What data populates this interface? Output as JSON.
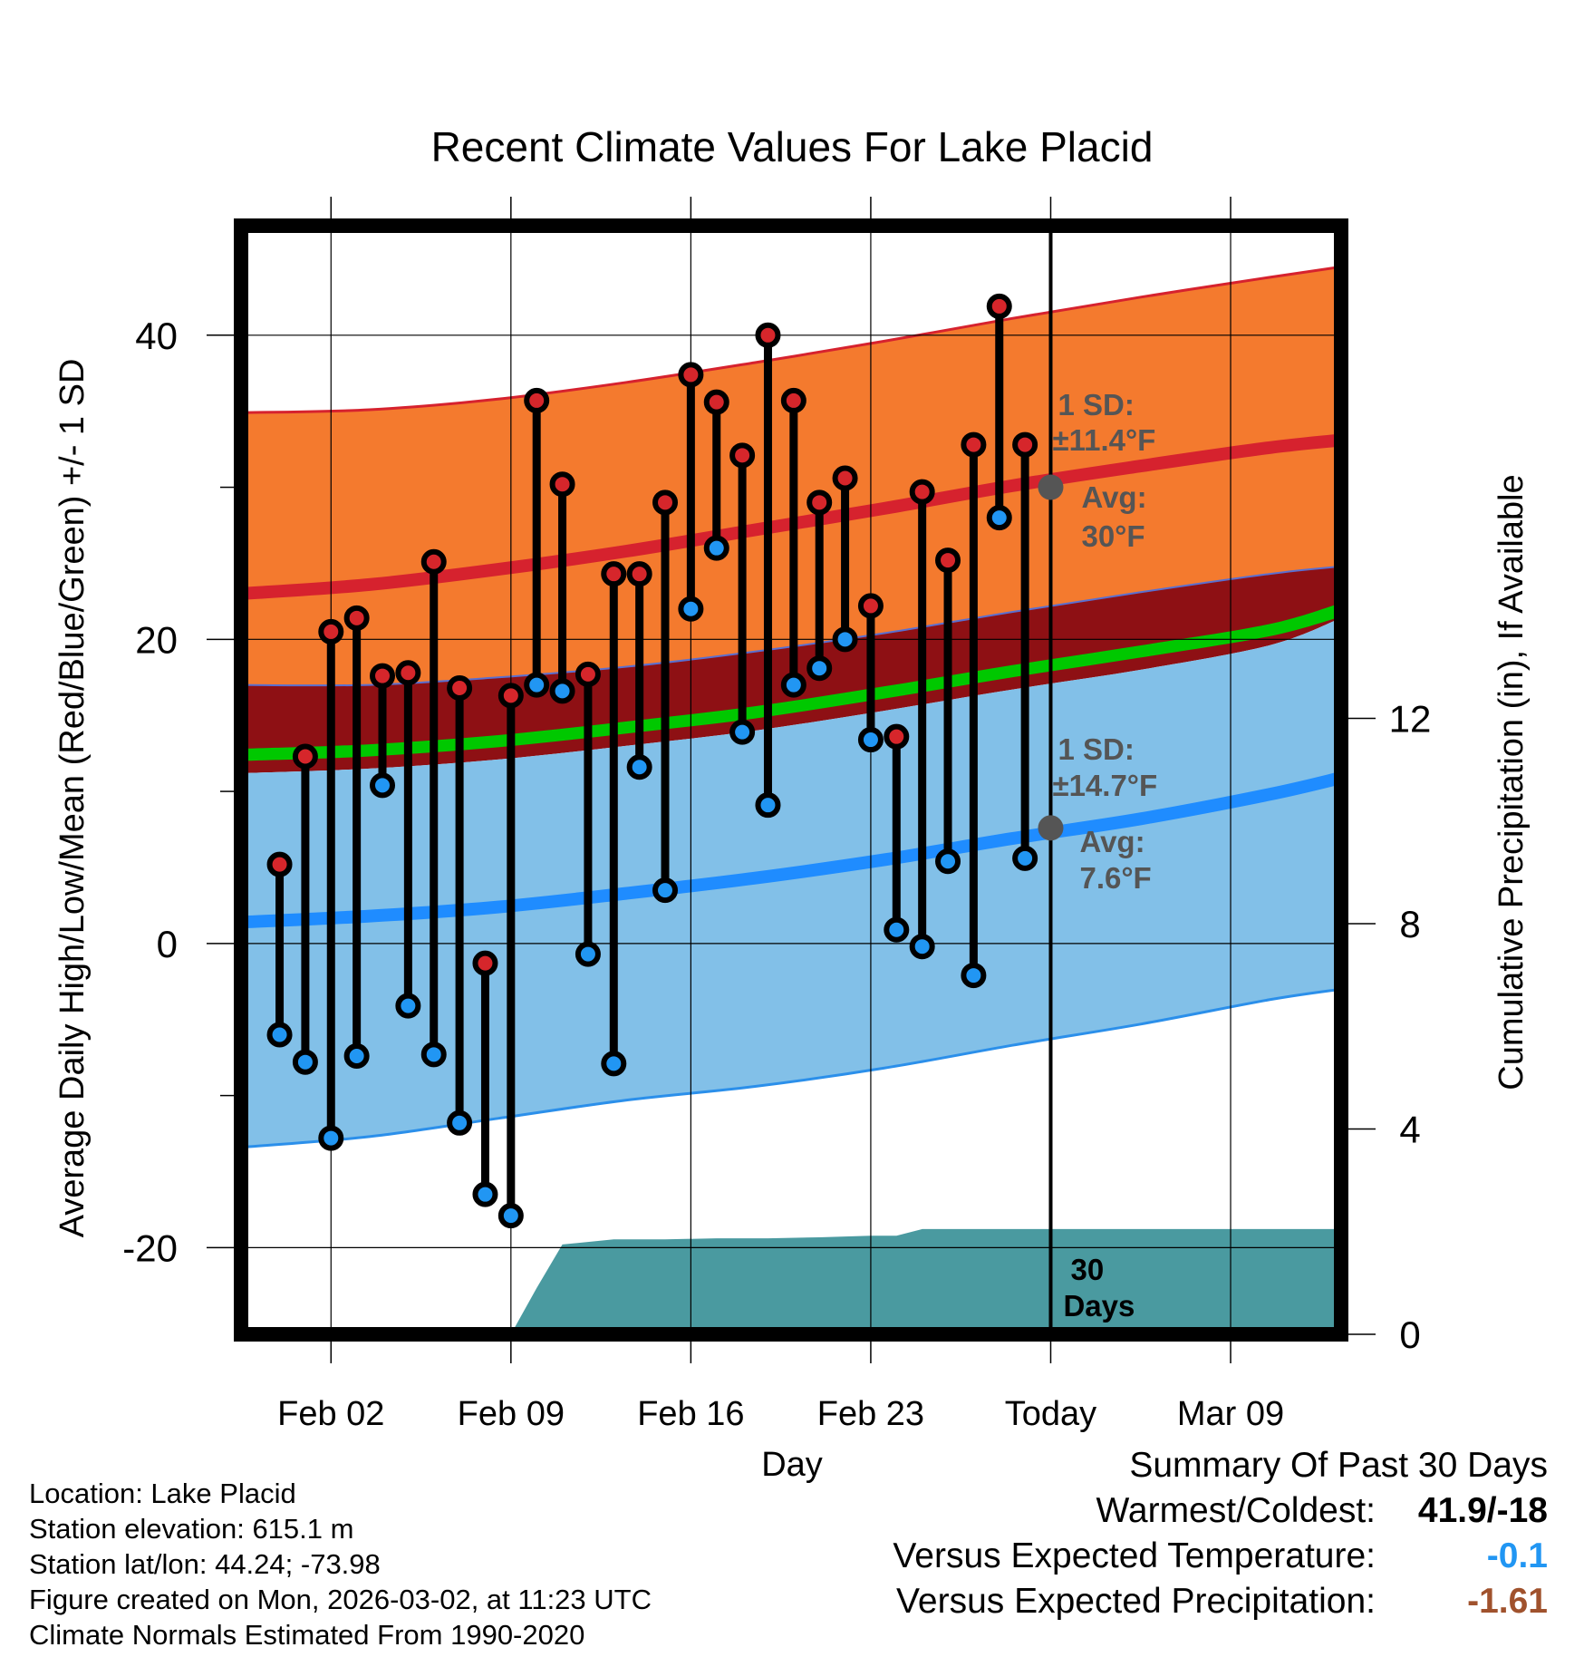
{
  "colors": {
    "high_band": "#f47a2e",
    "high_edge": "#d6222e",
    "mean_band": "#8e1014",
    "mean_line": "#00c800",
    "low_band": "#82c0e8",
    "low_edge": "#2b8fea",
    "low_line": "#1f8cff",
    "precip": "#4a9aa0",
    "high_dot": "#d6262b",
    "low_dot": "#2196f3",
    "today_dot": "#555555",
    "annotation": "#555555",
    "versus_temp": "#2196f3",
    "versus_precip": "#a0522d"
  },
  "chart_data": {
    "type": "line",
    "title": "Recent Climate Values For Lake Placid",
    "xlabel": "Day",
    "ylabel": "Average Daily High/Low/Mean (Red/Blue/Green) +/- 1 SD",
    "y2label": "Cumulative Precipitation (in), If Available",
    "xlim": [
      -2.5,
      40.3
    ],
    "ylim": [
      -25.7,
      47.2
    ],
    "y2lim": [
      0,
      21.6
    ],
    "x_ticks": [
      {
        "x": 1,
        "label": "Feb 02"
      },
      {
        "x": 8,
        "label": "Feb 09"
      },
      {
        "x": 15,
        "label": "Feb 16"
      },
      {
        "x": 22,
        "label": "Feb 23"
      },
      {
        "x": 29,
        "label": "Today"
      },
      {
        "x": 36,
        "label": "Mar 09"
      }
    ],
    "y_ticks": [
      -20,
      0,
      20,
      40
    ],
    "y_minor_ticks": [
      -10,
      10,
      30
    ],
    "y2_ticks": [
      0,
      4,
      8,
      12
    ],
    "grid": true,
    "today_x": 29,
    "normal_x": [
      -2.5,
      2.5,
      7.5,
      12.5,
      17.5,
      22.5,
      27.5,
      32.5,
      37.5,
      40.3
    ],
    "normal_high_plus_sd": [
      34.9,
      35.1,
      35.8,
      36.9,
      38.2,
      39.6,
      41.1,
      42.5,
      43.8,
      44.5
    ],
    "normal_high": [
      23.0,
      23.6,
      24.6,
      25.8,
      27.2,
      28.6,
      30.1,
      31.4,
      32.6,
      33.1
    ],
    "normal_high_minus_sd": [
      17.0,
      17.0,
      17.5,
      18.2,
      19.2,
      20.4,
      21.8,
      23.1,
      24.3,
      24.8
    ],
    "normal_mean_upper": [
      12.8,
      13.1,
      13.7,
      14.6,
      15.6,
      16.9,
      18.3,
      19.6,
      21.0,
      22.4
    ],
    "normal_mean_lower": [
      12.0,
      12.3,
      12.9,
      13.8,
      14.8,
      16.1,
      17.5,
      18.8,
      20.2,
      21.5
    ],
    "normal_low_plus_sd": [
      11.2,
      11.5,
      12.1,
      13.0,
      14.0,
      15.3,
      16.7,
      18.0,
      19.6,
      21.4
    ],
    "normal_low": [
      1.4,
      1.8,
      2.4,
      3.3,
      4.3,
      5.5,
      6.9,
      8.2,
      9.8,
      10.9
    ],
    "normal_low_minus_sd": [
      -13.4,
      -12.7,
      -11.5,
      -10.3,
      -9.4,
      -8.2,
      -6.7,
      -5.3,
      -3.7,
      -3.0
    ],
    "days_x": [
      -1,
      0,
      1,
      2,
      3,
      4,
      5,
      6,
      7,
      8,
      9,
      10,
      11,
      12,
      13,
      14,
      15,
      16,
      17,
      18,
      19,
      20,
      21,
      22,
      23,
      24,
      25,
      26,
      27,
      28
    ],
    "series": [
      {
        "name": "Daily High",
        "values": [
          5.2,
          12.3,
          20.5,
          21.4,
          17.6,
          17.8,
          25.1,
          16.8,
          -1.3,
          16.3,
          35.7,
          30.2,
          17.7,
          24.3,
          24.3,
          29.0,
          37.4,
          35.6,
          32.1,
          40.0,
          35.7,
          29.0,
          30.6,
          22.2,
          13.6,
          29.7,
          25.2,
          32.8,
          41.9,
          32.8
        ]
      },
      {
        "name": "Daily Low",
        "values": [
          -6.0,
          -7.8,
          -12.8,
          -7.4,
          10.4,
          -4.1,
          -7.3,
          -11.8,
          -16.5,
          -17.9,
          17.0,
          16.6,
          -0.7,
          -7.9,
          11.6,
          3.5,
          22.0,
          26.0,
          13.9,
          9.1,
          17.0,
          18.1,
          20.0,
          13.4,
          0.9,
          -0.2,
          5.4,
          -2.1,
          28.0,
          5.6
        ]
      },
      {
        "name": "Cumulative Precipitation",
        "axis": "y2",
        "x": [
          8,
          9,
          10,
          12,
          14,
          16,
          18,
          20,
          22,
          23,
          24,
          25,
          26,
          27,
          28,
          29,
          40.3
        ],
        "values": [
          0,
          0.9,
          1.75,
          1.85,
          1.85,
          1.87,
          1.87,
          1.89,
          1.92,
          1.92,
          2.05,
          2.05,
          2.05,
          2.05,
          2.05,
          2.05,
          2.05
        ]
      }
    ],
    "annotations": {
      "high_sd": "1 SD:",
      "high_sd_value": "±11.4°F",
      "high_avg": "Avg:",
      "high_avg_value": "30°F",
      "low_sd": "1 SD:",
      "low_sd_value": "±14.7°F",
      "low_avg": "Avg:",
      "low_avg_value": "7.6°F",
      "precip_label_1": "30",
      "precip_label_2": "Days"
    },
    "today_high_avg": 30,
    "today_low_avg": 7.6
  },
  "footer": {
    "location": "Location: Lake Placid",
    "elevation": "Station elevation: 615.1 m",
    "latlon": "Station lat/lon: 44.24; -73.98",
    "created": "Figure created on Mon, 2026-03-02, at 11:23 UTC",
    "normals": "Climate Normals Estimated From 1990-2020"
  },
  "summary": {
    "title": "Summary Of Past 30 Days",
    "warmest_label": "Warmest/Coldest:",
    "warmest_value": "41.9/-18",
    "temp_label": "Versus Expected Temperature:",
    "temp_value": "-0.1",
    "precip_label": "Versus Expected Precipitation:",
    "precip_value": "-1.61"
  }
}
